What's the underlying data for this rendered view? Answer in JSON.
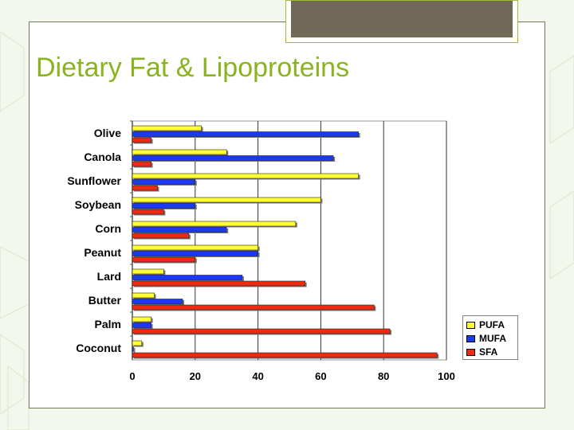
{
  "slide": {
    "title": "Dietary Fat & Lipoproteins"
  },
  "colors": {
    "accent": "#8bb320",
    "tab": "#716957",
    "pufa": "#ffff33",
    "mufa": "#1a3ce8",
    "sfa": "#ee2a10"
  },
  "legend": {
    "items": [
      {
        "label": "PUFA",
        "color": "#ffff33"
      },
      {
        "label": "MUFA",
        "color": "#1a3ce8"
      },
      {
        "label": "SFA",
        "color": "#ee2a10"
      }
    ]
  },
  "chart_data": {
    "type": "bar",
    "orientation": "horizontal",
    "categories": [
      "Olive",
      "Canola",
      "Sunflower",
      "Soybean",
      "Corn",
      "Peanut",
      "Lard",
      "Butter",
      "Palm",
      "Coconut"
    ],
    "series": [
      {
        "name": "PUFA",
        "color": "#ffff33",
        "values": [
          22,
          30,
          72,
          60,
          52,
          40,
          10,
          7,
          6,
          3
        ]
      },
      {
        "name": "MUFA",
        "color": "#1a3ce8",
        "values": [
          72,
          64,
          20,
          20,
          30,
          40,
          35,
          16,
          6,
          0
        ]
      },
      {
        "name": "SFA",
        "color": "#ee2a10",
        "values": [
          6,
          6,
          8,
          10,
          18,
          20,
          55,
          77,
          82,
          97
        ]
      }
    ],
    "xticks": [
      "0",
      "20",
      "40",
      "60",
      "80",
      "100"
    ],
    "xlim": [
      0,
      100
    ],
    "grid": true,
    "legend_position": "bottom-right",
    "title": "",
    "xlabel": "",
    "ylabel": ""
  }
}
